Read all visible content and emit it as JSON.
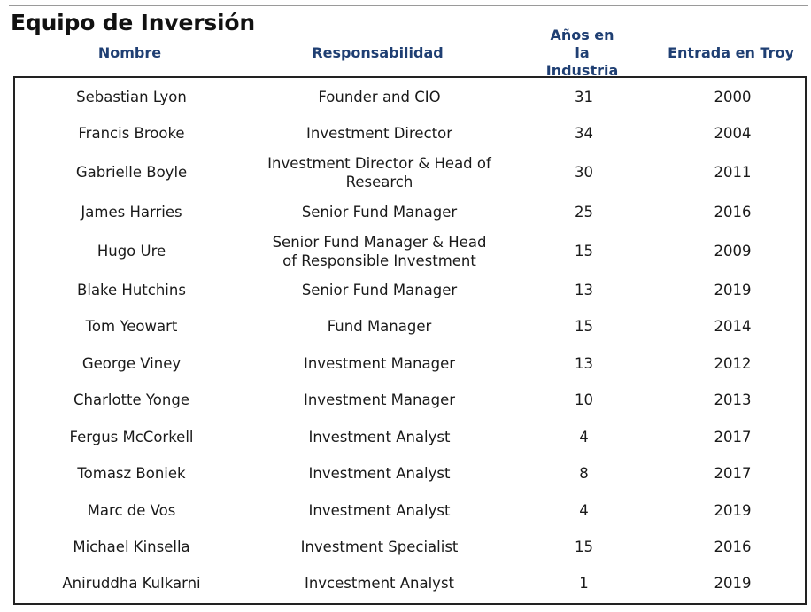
{
  "title": "Equipo de Inversión",
  "headers": {
    "name": "Nombre",
    "role": "Responsabilidad",
    "years": "Años en la Industria",
    "joined": "Entrada en Troy"
  },
  "rows": [
    {
      "name": "Sebastian Lyon",
      "role": "Founder and CIO",
      "years": "31",
      "joined": "2000"
    },
    {
      "name": "Francis Brooke",
      "role": "Investment Director",
      "years": "34",
      "joined": "2004"
    },
    {
      "name": "Gabrielle Boyle",
      "role": "Investment Director & Head of Research",
      "years": "30",
      "joined": "2011"
    },
    {
      "name": "James Harries",
      "role": "Senior Fund Manager",
      "years": "25",
      "joined": "2016"
    },
    {
      "name": "Hugo Ure",
      "role": "Senior Fund Manager & Head of Responsible Investment",
      "years": "15",
      "joined": "2009"
    },
    {
      "name": "Blake Hutchins",
      "role": "Senior Fund Manager",
      "years": "13",
      "joined": "2019"
    },
    {
      "name": "Tom Yeowart",
      "role": "Fund Manager",
      "years": "15",
      "joined": "2014"
    },
    {
      "name": "George Viney",
      "role": "Investment Manager",
      "years": "13",
      "joined": "2012"
    },
    {
      "name": "Charlotte Yonge",
      "role": "Investment Manager",
      "years": "10",
      "joined": "2013"
    },
    {
      "name": "Fergus McCorkell",
      "role": "Investment Analyst",
      "years": "4",
      "joined": "2017"
    },
    {
      "name": "Tomasz Boniek",
      "role": "Investment Analyst",
      "years": "8",
      "joined": "2017"
    },
    {
      "name": "Marc de Vos",
      "role": "Investment Analyst",
      "years": "4",
      "joined": "2019"
    },
    {
      "name": "Michael Kinsella",
      "role": "Investment Specialist",
      "years": "15",
      "joined": "2016"
    },
    {
      "name": "Aniruddha Kulkarni",
      "role": "Invcestment Analyst",
      "years": "1",
      "joined": "2019"
    }
  ],
  "colors": {
    "header_text": "#1f3f73",
    "border": "#222222",
    "body_text": "#1a1a1a"
  }
}
